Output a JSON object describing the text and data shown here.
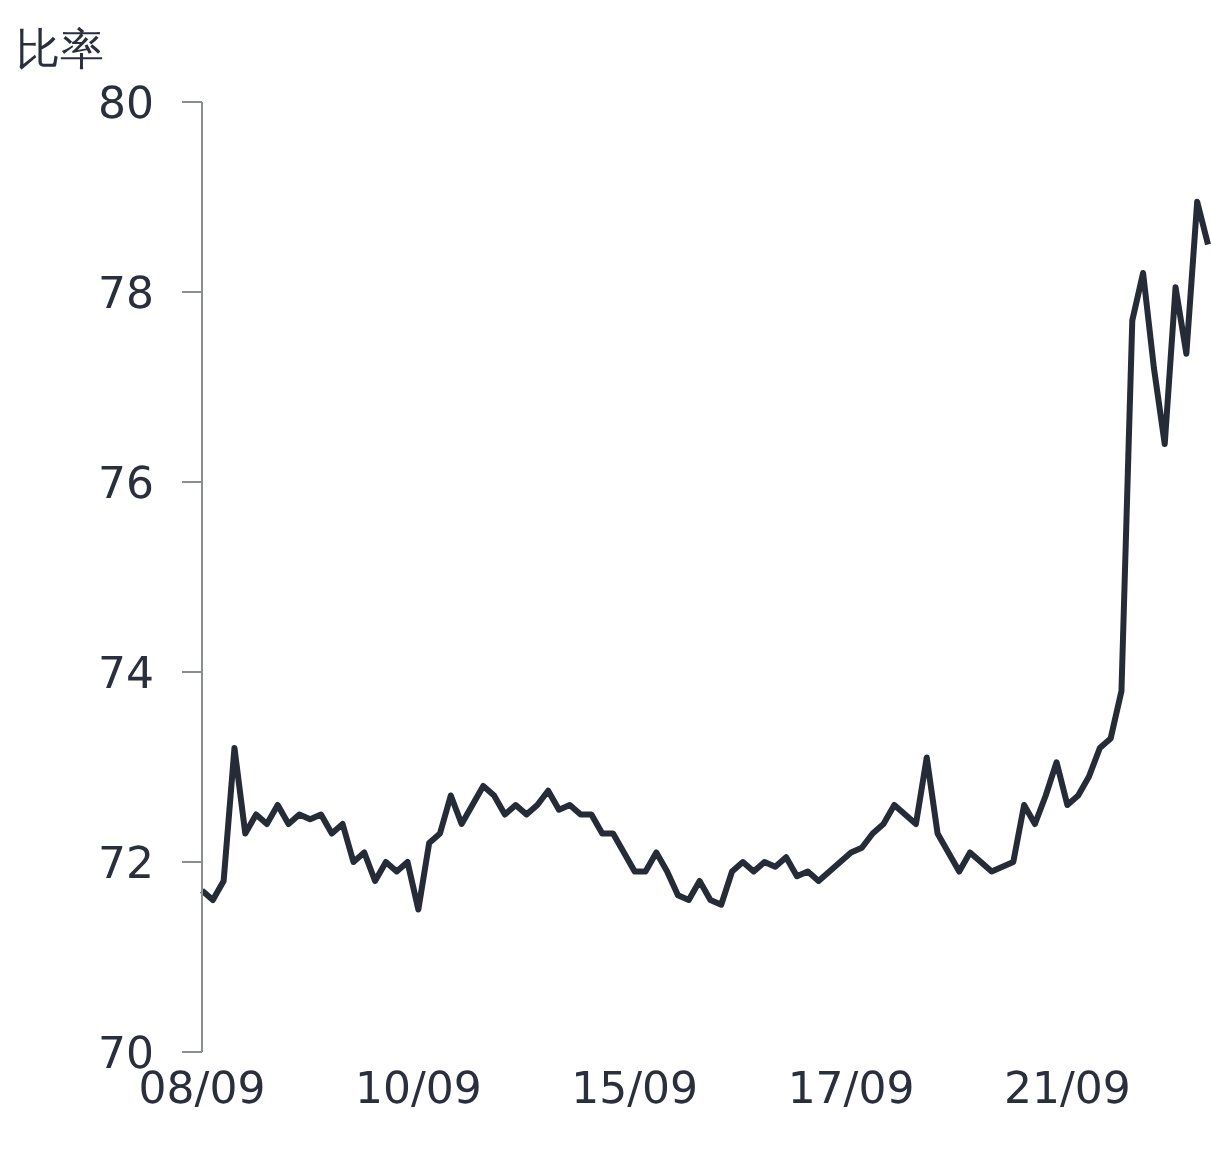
{
  "chart_data": {
    "type": "line",
    "ylabel": "比率",
    "categories": [
      "08/09",
      null,
      null,
      null,
      null,
      null,
      null,
      null,
      null,
      null,
      null,
      null,
      null,
      null,
      null,
      null,
      null,
      null,
      null,
      null,
      "10/09",
      null,
      null,
      null,
      null,
      null,
      null,
      null,
      null,
      null,
      null,
      null,
      null,
      null,
      null,
      null,
      null,
      null,
      null,
      null,
      "15/09",
      null,
      null,
      null,
      null,
      null,
      null,
      null,
      null,
      null,
      null,
      null,
      null,
      null,
      null,
      null,
      null,
      null,
      null,
      null,
      "17/09",
      null,
      null,
      null,
      null,
      null,
      null,
      null,
      null,
      null,
      null,
      null,
      null,
      null,
      null,
      null,
      null,
      null,
      null,
      null,
      "21/09",
      null,
      null,
      null,
      null,
      null,
      null,
      null,
      null,
      null,
      null,
      null,
      null,
      null
    ],
    "values": [
      71.7,
      71.6,
      71.8,
      73.2,
      72.3,
      72.5,
      72.4,
      72.6,
      72.4,
      72.5,
      72.45,
      72.5,
      72.3,
      72.4,
      72.0,
      72.1,
      71.8,
      72.0,
      71.9,
      72.0,
      71.5,
      72.2,
      72.3,
      72.7,
      72.4,
      72.6,
      72.8,
      72.7,
      72.5,
      72.6,
      72.5,
      72.6,
      72.75,
      72.55,
      72.6,
      72.5,
      72.5,
      72.3,
      72.3,
      72.1,
      71.9,
      71.9,
      72.1,
      71.9,
      71.65,
      71.6,
      71.8,
      71.6,
      71.55,
      71.9,
      72.0,
      71.9,
      72.0,
      71.95,
      72.05,
      71.85,
      71.9,
      71.8,
      71.9,
      72.0,
      72.1,
      72.15,
      72.3,
      72.4,
      72.6,
      72.5,
      72.4,
      73.1,
      72.3,
      72.1,
      71.9,
      72.1,
      72.0,
      71.9,
      71.95,
      72.0,
      72.6,
      72.4,
      72.7,
      73.05,
      72.6,
      72.7,
      72.9,
      73.2,
      73.3,
      73.8,
      77.7,
      78.2,
      77.2,
      76.4,
      78.05,
      77.35,
      78.95,
      78.5
    ],
    "color": "#262b38",
    "marker": "none",
    "ylim": [
      70,
      80
    ],
    "yticks": [
      70,
      72,
      74,
      76,
      78,
      80
    ]
  }
}
